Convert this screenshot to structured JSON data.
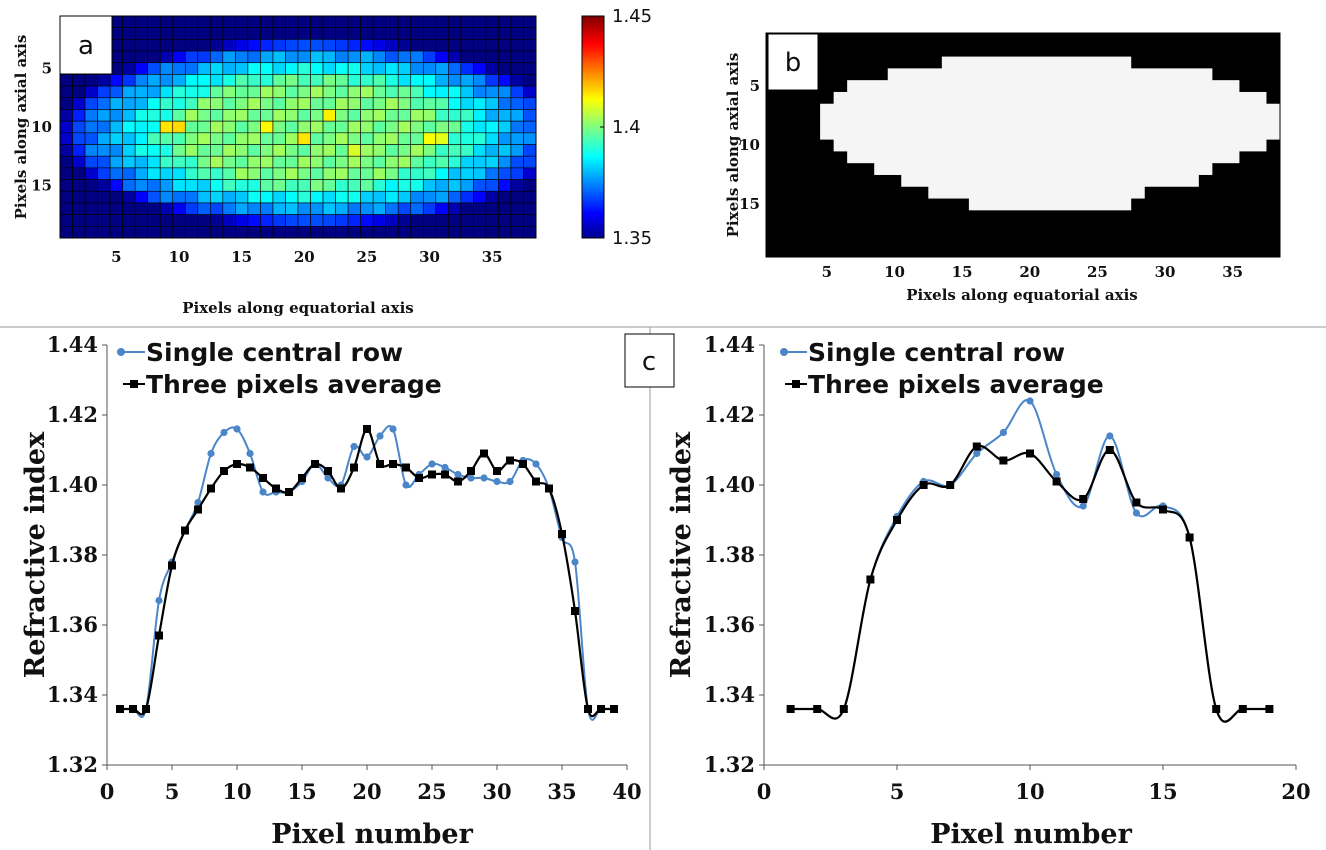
{
  "chart_data": [
    {
      "panel": "a",
      "type": "heatmap",
      "panel_label": "a",
      "xlabel": "Pixels along equatorial axis",
      "ylabel": "Pixels along axial axis",
      "xticks": [
        5,
        10,
        15,
        20,
        25,
        30,
        35
      ],
      "yticks": [
        5,
        10,
        15
      ],
      "cols": 38,
      "rows": 19,
      "colorbar": {
        "min": 1.35,
        "max": 1.45,
        "ticks": [
          "1.45",
          "1.4",
          "1.35"
        ],
        "tick_values": [
          1.45,
          1.4,
          1.35
        ],
        "colormap": "jet"
      },
      "background_value": 1.336,
      "region": {
        "center_col": 20.5,
        "center_row": 10.5,
        "half_width": 18.5,
        "half_height": 7.5,
        "edge_value": 1.37,
        "inner_value": 1.4
      },
      "hot_pixels": [
        {
          "col": 10,
          "row": 10,
          "value": 1.416
        },
        {
          "col": 9,
          "row": 10,
          "value": 1.415
        },
        {
          "col": 17,
          "row": 10,
          "value": 1.413
        },
        {
          "col": 20,
          "row": 11,
          "value": 1.415
        },
        {
          "col": 22,
          "row": 9,
          "value": 1.414
        },
        {
          "col": 30,
          "row": 11,
          "value": 1.412
        },
        {
          "col": 31,
          "row": 11,
          "value": 1.41
        },
        {
          "col": 24,
          "row": 12,
          "value": 1.409
        }
      ]
    },
    {
      "panel": "b",
      "type": "heatmap",
      "panel_label": "b",
      "xlabel": "Pixels along equatorial axis",
      "ylabel": "Pixels along axial axis",
      "xticks": [
        5,
        10,
        15,
        20,
        25,
        30,
        35
      ],
      "yticks": [
        5,
        10,
        15
      ],
      "cols": 38,
      "rows": 19,
      "mask_row_spans": [
        [
          0,
          0
        ],
        [
          0,
          0
        ],
        [
          14,
          27
        ],
        [
          10,
          33
        ],
        [
          7,
          35
        ],
        [
          6,
          37
        ],
        [
          5,
          38
        ],
        [
          5,
          38
        ],
        [
          5,
          38
        ],
        [
          6,
          37
        ],
        [
          7,
          35
        ],
        [
          9,
          33
        ],
        [
          11,
          32
        ],
        [
          13,
          28
        ],
        [
          16,
          27
        ],
        [
          0,
          0
        ],
        [
          0,
          0
        ],
        [
          0,
          0
        ],
        [
          0,
          0
        ]
      ],
      "colors": {
        "inside": "#f5f5f5",
        "outside": "#000000"
      }
    },
    {
      "panel": "c-left",
      "type": "line",
      "panel_label": "c",
      "xlabel": "Pixel number",
      "ylabel": "Refractive index",
      "xlim": [
        0,
        40
      ],
      "ylim": [
        1.32,
        1.44
      ],
      "xticks": [
        0,
        5,
        10,
        15,
        20,
        25,
        30,
        35,
        40
      ],
      "yticks": [
        "1.32",
        "1.34",
        "1.36",
        "1.38",
        "1.40",
        "1.42",
        "1.44"
      ],
      "legend_position": "top-left",
      "grid": false,
      "series": [
        {
          "name": "Single central row",
          "color": "#4a86c8",
          "marker": "circle",
          "x": [
            1,
            2,
            3,
            4,
            5,
            6,
            7,
            8,
            9,
            10,
            11,
            12,
            13,
            14,
            15,
            16,
            17,
            18,
            19,
            20,
            21,
            22,
            23,
            24,
            25,
            26,
            27,
            28,
            29,
            30,
            31,
            32,
            33,
            34,
            35,
            36,
            37,
            38,
            39
          ],
          "y": [
            1.336,
            1.336,
            1.336,
            1.367,
            1.378,
            1.387,
            1.395,
            1.409,
            1.415,
            1.416,
            1.409,
            1.398,
            1.398,
            1.398,
            1.401,
            1.406,
            1.402,
            1.4,
            1.411,
            1.408,
            1.414,
            1.416,
            1.4,
            1.403,
            1.406,
            1.405,
            1.403,
            1.402,
            1.402,
            1.401,
            1.401,
            1.407,
            1.406,
            1.399,
            1.385,
            1.378,
            1.336,
            1.336,
            1.336
          ]
        },
        {
          "name": "Three pixels average",
          "color": "#000000",
          "marker": "square",
          "x": [
            1,
            2,
            3,
            4,
            5,
            6,
            7,
            8,
            9,
            10,
            11,
            12,
            13,
            14,
            15,
            16,
            17,
            18,
            19,
            20,
            21,
            22,
            23,
            24,
            25,
            26,
            27,
            28,
            29,
            30,
            31,
            32,
            33,
            34,
            35,
            36,
            37,
            38,
            39
          ],
          "y": [
            1.336,
            1.336,
            1.336,
            1.357,
            1.377,
            1.387,
            1.393,
            1.399,
            1.404,
            1.406,
            1.405,
            1.402,
            1.399,
            1.398,
            1.402,
            1.406,
            1.404,
            1.399,
            1.405,
            1.416,
            1.406,
            1.406,
            1.405,
            1.402,
            1.403,
            1.403,
            1.401,
            1.404,
            1.409,
            1.404,
            1.407,
            1.406,
            1.401,
            1.399,
            1.386,
            1.364,
            1.336,
            1.336,
            1.336
          ]
        }
      ]
    },
    {
      "panel": "c-right",
      "type": "line",
      "xlabel": "Pixel number",
      "ylabel": "Refractive index",
      "xlim": [
        0,
        20
      ],
      "ylim": [
        1.32,
        1.44
      ],
      "xticks": [
        0,
        5,
        10,
        15,
        20
      ],
      "yticks": [
        "1.32",
        "1.34",
        "1.36",
        "1.38",
        "1.40",
        "1.42",
        "1.44"
      ],
      "legend_position": "top-left",
      "grid": false,
      "series": [
        {
          "name": "Single central row",
          "color": "#4a86c8",
          "marker": "circle",
          "x": [
            1,
            2,
            3,
            4,
            5,
            6,
            7,
            8,
            9,
            10,
            11,
            12,
            13,
            14,
            15,
            16,
            17,
            18,
            19
          ],
          "y": [
            1.336,
            1.336,
            1.336,
            1.373,
            1.391,
            1.401,
            1.4,
            1.409,
            1.415,
            1.424,
            1.403,
            1.394,
            1.414,
            1.392,
            1.394,
            1.385,
            1.336,
            1.336,
            1.336
          ]
        },
        {
          "name": "Three pixels average",
          "color": "#000000",
          "marker": "square",
          "x": [
            1,
            2,
            3,
            4,
            5,
            6,
            7,
            8,
            9,
            10,
            11,
            12,
            13,
            14,
            15,
            16,
            17,
            18,
            19
          ],
          "y": [
            1.336,
            1.336,
            1.336,
            1.373,
            1.39,
            1.4,
            1.4,
            1.411,
            1.407,
            1.409,
            1.401,
            1.396,
            1.41,
            1.395,
            1.393,
            1.385,
            1.336,
            1.336,
            1.336
          ]
        }
      ]
    }
  ]
}
